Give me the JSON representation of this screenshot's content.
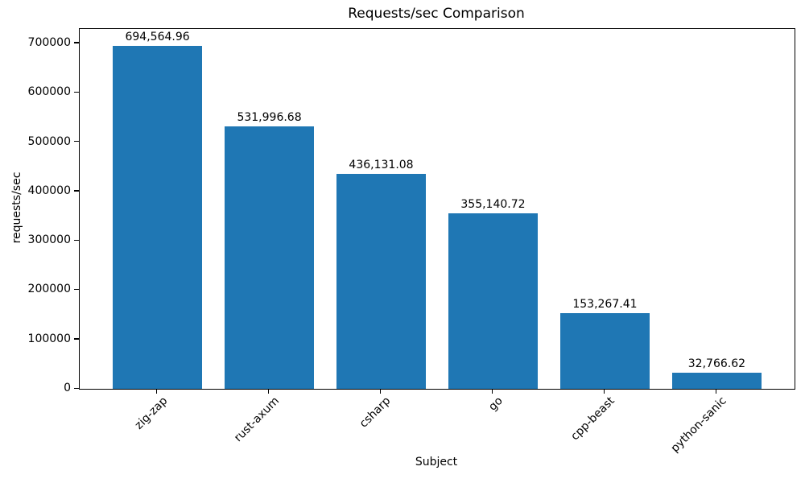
{
  "chart_data": {
    "type": "bar",
    "title": "Requests/sec Comparison",
    "xlabel": "Subject",
    "ylabel": "requests/sec",
    "categories": [
      "zig-zap",
      "rust-axum",
      "csharp",
      "go",
      "cpp-beast",
      "python-sanic"
    ],
    "values": [
      694564.96,
      531996.68,
      436131.08,
      355140.72,
      153267.41,
      32766.62
    ],
    "value_labels": [
      "694,564.96",
      "531,996.68",
      "436,131.08",
      "355,140.72",
      "153,267.41",
      "32,766.62"
    ],
    "yticks": [
      0,
      100000,
      200000,
      300000,
      400000,
      500000,
      600000,
      700000
    ],
    "ytick_labels": [
      "0",
      "100000",
      "200000",
      "300000",
      "400000",
      "500000",
      "600000",
      "700000"
    ],
    "ylim": [
      0,
      729293
    ],
    "xlim": [
      -0.695,
      5.695
    ],
    "bar_width_units": 0.8,
    "bar_color": "#1f77b4",
    "grid": false,
    "legend": null
  }
}
